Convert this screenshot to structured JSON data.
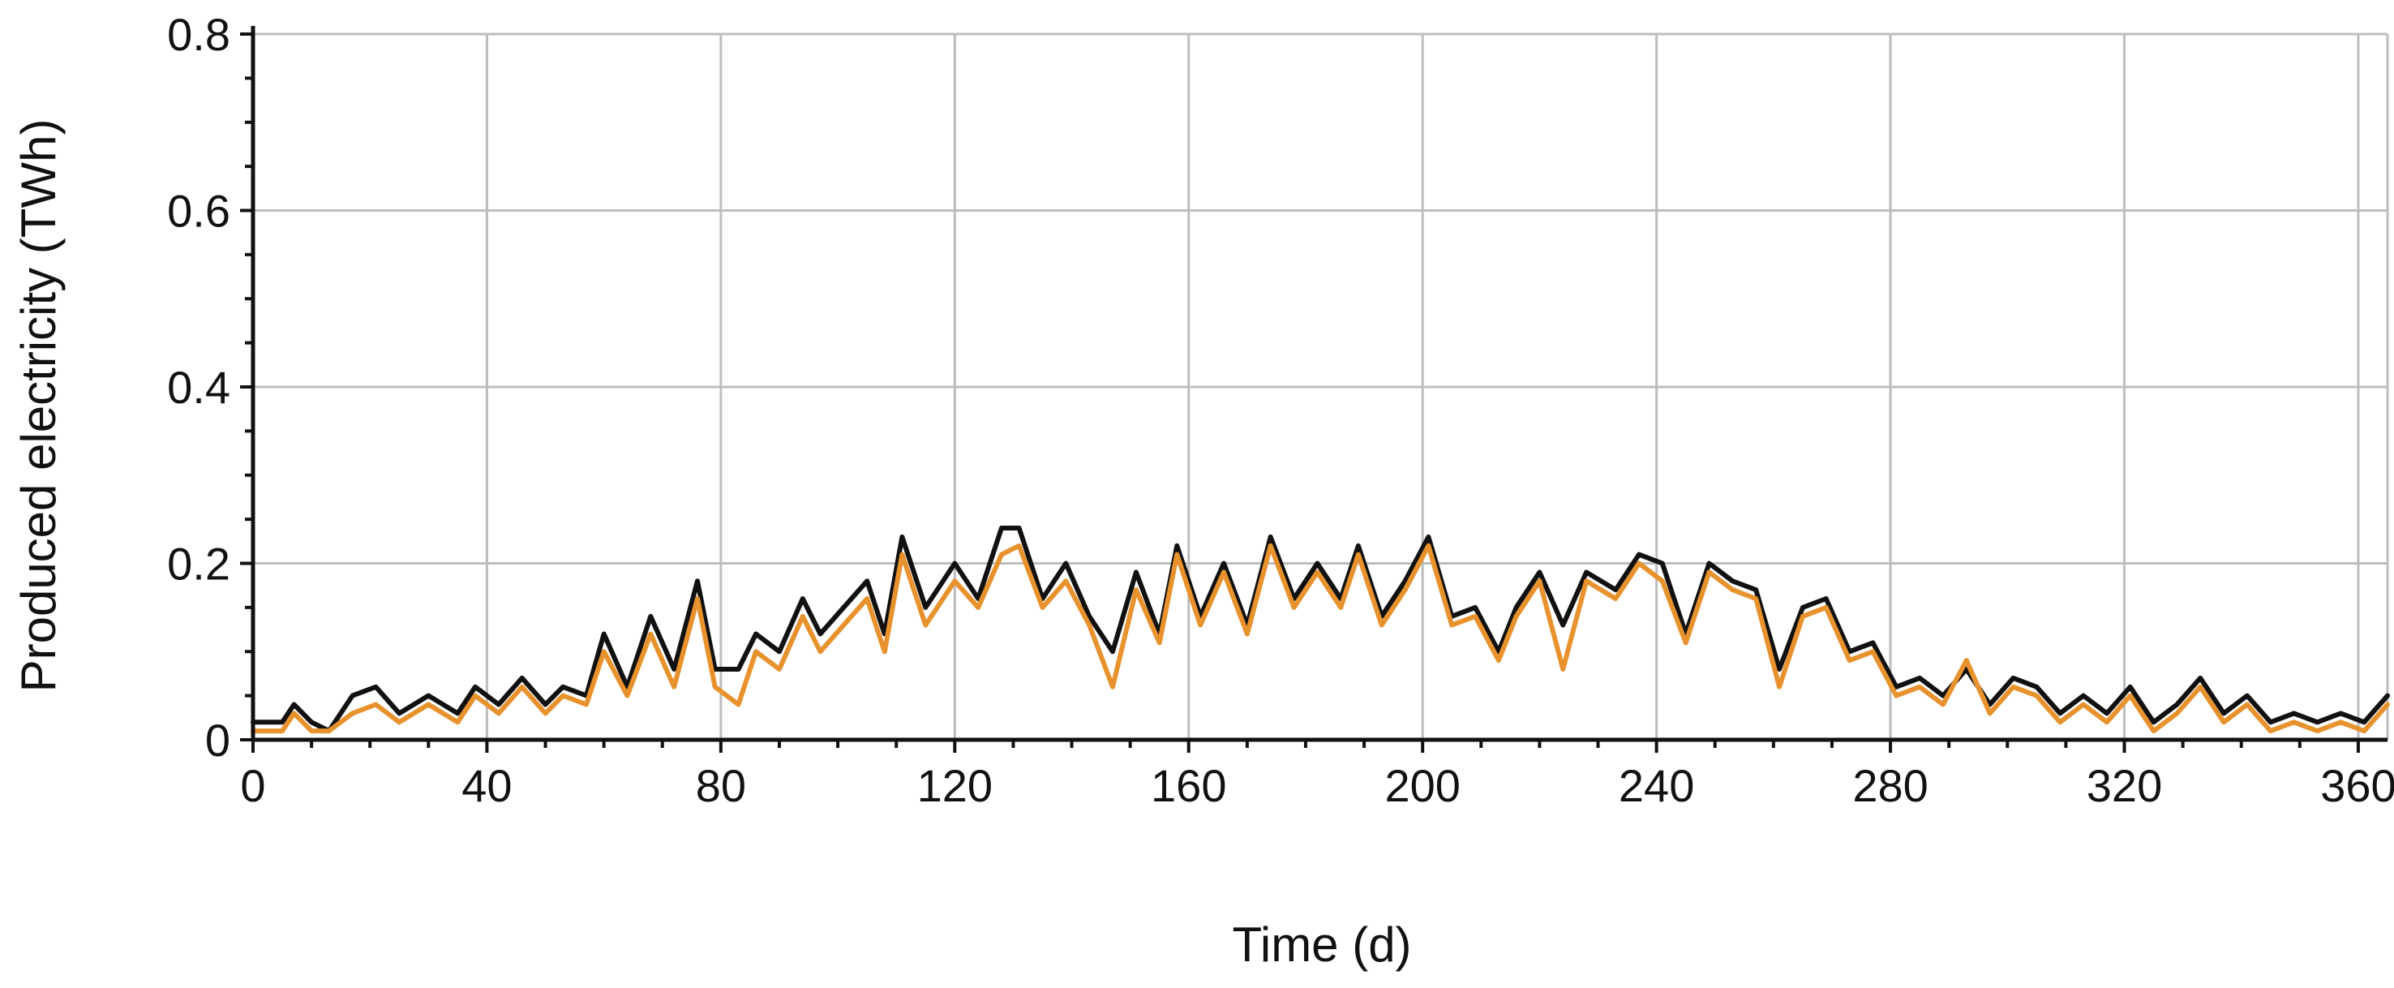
{
  "chart_data": {
    "type": "line",
    "title": "",
    "xlabel": "Time (d)",
    "ylabel": "Produced electricity (TWh)",
    "xlim": [
      0,
      365
    ],
    "ylim": [
      0,
      0.8
    ],
    "xticks": [
      0,
      40,
      80,
      120,
      160,
      200,
      240,
      280,
      320,
      360
    ],
    "yticks": [
      0,
      0.2,
      0.4,
      0.6,
      0.8
    ],
    "ytick_labels": [
      "0",
      "0.2",
      "0.4",
      "0.6",
      "0.8"
    ],
    "grid": true,
    "legend": "none",
    "x": [
      0,
      5,
      7,
      10,
      13,
      17,
      21,
      25,
      30,
      35,
      38,
      42,
      46,
      50,
      53,
      57,
      60,
      64,
      68,
      72,
      76,
      79,
      83,
      86,
      90,
      94,
      97,
      101,
      105,
      108,
      111,
      115,
      120,
      124,
      128,
      131,
      135,
      139,
      143,
      147,
      151,
      155,
      158,
      162,
      166,
      170,
      174,
      178,
      182,
      186,
      189,
      193,
      197,
      201,
      205,
      209,
      213,
      216,
      220,
      224,
      228,
      233,
      237,
      241,
      245,
      249,
      253,
      257,
      261,
      265,
      269,
      273,
      277,
      281,
      285,
      289,
      293,
      297,
      301,
      305,
      309,
      313,
      317,
      321,
      325,
      329,
      333,
      337,
      341,
      345,
      349,
      353,
      357,
      361,
      365
    ],
    "series": [
      {
        "color": "#111111",
        "values": [
          0.02,
          0.02,
          0.04,
          0.02,
          0.01,
          0.05,
          0.06,
          0.03,
          0.05,
          0.03,
          0.06,
          0.04,
          0.07,
          0.04,
          0.06,
          0.05,
          0.12,
          0.06,
          0.14,
          0.08,
          0.18,
          0.08,
          0.08,
          0.12,
          0.1,
          0.16,
          0.12,
          0.15,
          0.18,
          0.12,
          0.23,
          0.15,
          0.2,
          0.16,
          0.24,
          0.24,
          0.16,
          0.2,
          0.14,
          0.1,
          0.19,
          0.12,
          0.22,
          0.14,
          0.2,
          0.13,
          0.23,
          0.16,
          0.2,
          0.16,
          0.22,
          0.14,
          0.18,
          0.23,
          0.14,
          0.15,
          0.1,
          0.15,
          0.19,
          0.13,
          0.19,
          0.17,
          0.21,
          0.2,
          0.12,
          0.2,
          0.18,
          0.17,
          0.08,
          0.15,
          0.16,
          0.1,
          0.11,
          0.06,
          0.07,
          0.05,
          0.08,
          0.04,
          0.07,
          0.06,
          0.03,
          0.05,
          0.03,
          0.06,
          0.02,
          0.04,
          0.07,
          0.03,
          0.05,
          0.02,
          0.03,
          0.02,
          0.03,
          0.02,
          0.05
        ]
      },
      {
        "color": "#e8922e",
        "values": [
          0.01,
          0.01,
          0.03,
          0.01,
          0.01,
          0.03,
          0.04,
          0.02,
          0.04,
          0.02,
          0.05,
          0.03,
          0.06,
          0.03,
          0.05,
          0.04,
          0.1,
          0.05,
          0.12,
          0.06,
          0.16,
          0.06,
          0.04,
          0.1,
          0.08,
          0.14,
          0.1,
          0.13,
          0.16,
          0.1,
          0.21,
          0.13,
          0.18,
          0.15,
          0.21,
          0.22,
          0.15,
          0.18,
          0.13,
          0.06,
          0.17,
          0.11,
          0.21,
          0.13,
          0.19,
          0.12,
          0.22,
          0.15,
          0.19,
          0.15,
          0.21,
          0.13,
          0.17,
          0.22,
          0.13,
          0.14,
          0.09,
          0.14,
          0.18,
          0.08,
          0.18,
          0.16,
          0.2,
          0.18,
          0.11,
          0.19,
          0.17,
          0.16,
          0.06,
          0.14,
          0.15,
          0.09,
          0.1,
          0.05,
          0.06,
          0.04,
          0.09,
          0.03,
          0.06,
          0.05,
          0.02,
          0.04,
          0.02,
          0.05,
          0.01,
          0.03,
          0.06,
          0.02,
          0.04,
          0.01,
          0.02,
          0.01,
          0.02,
          0.01,
          0.04
        ]
      }
    ]
  }
}
